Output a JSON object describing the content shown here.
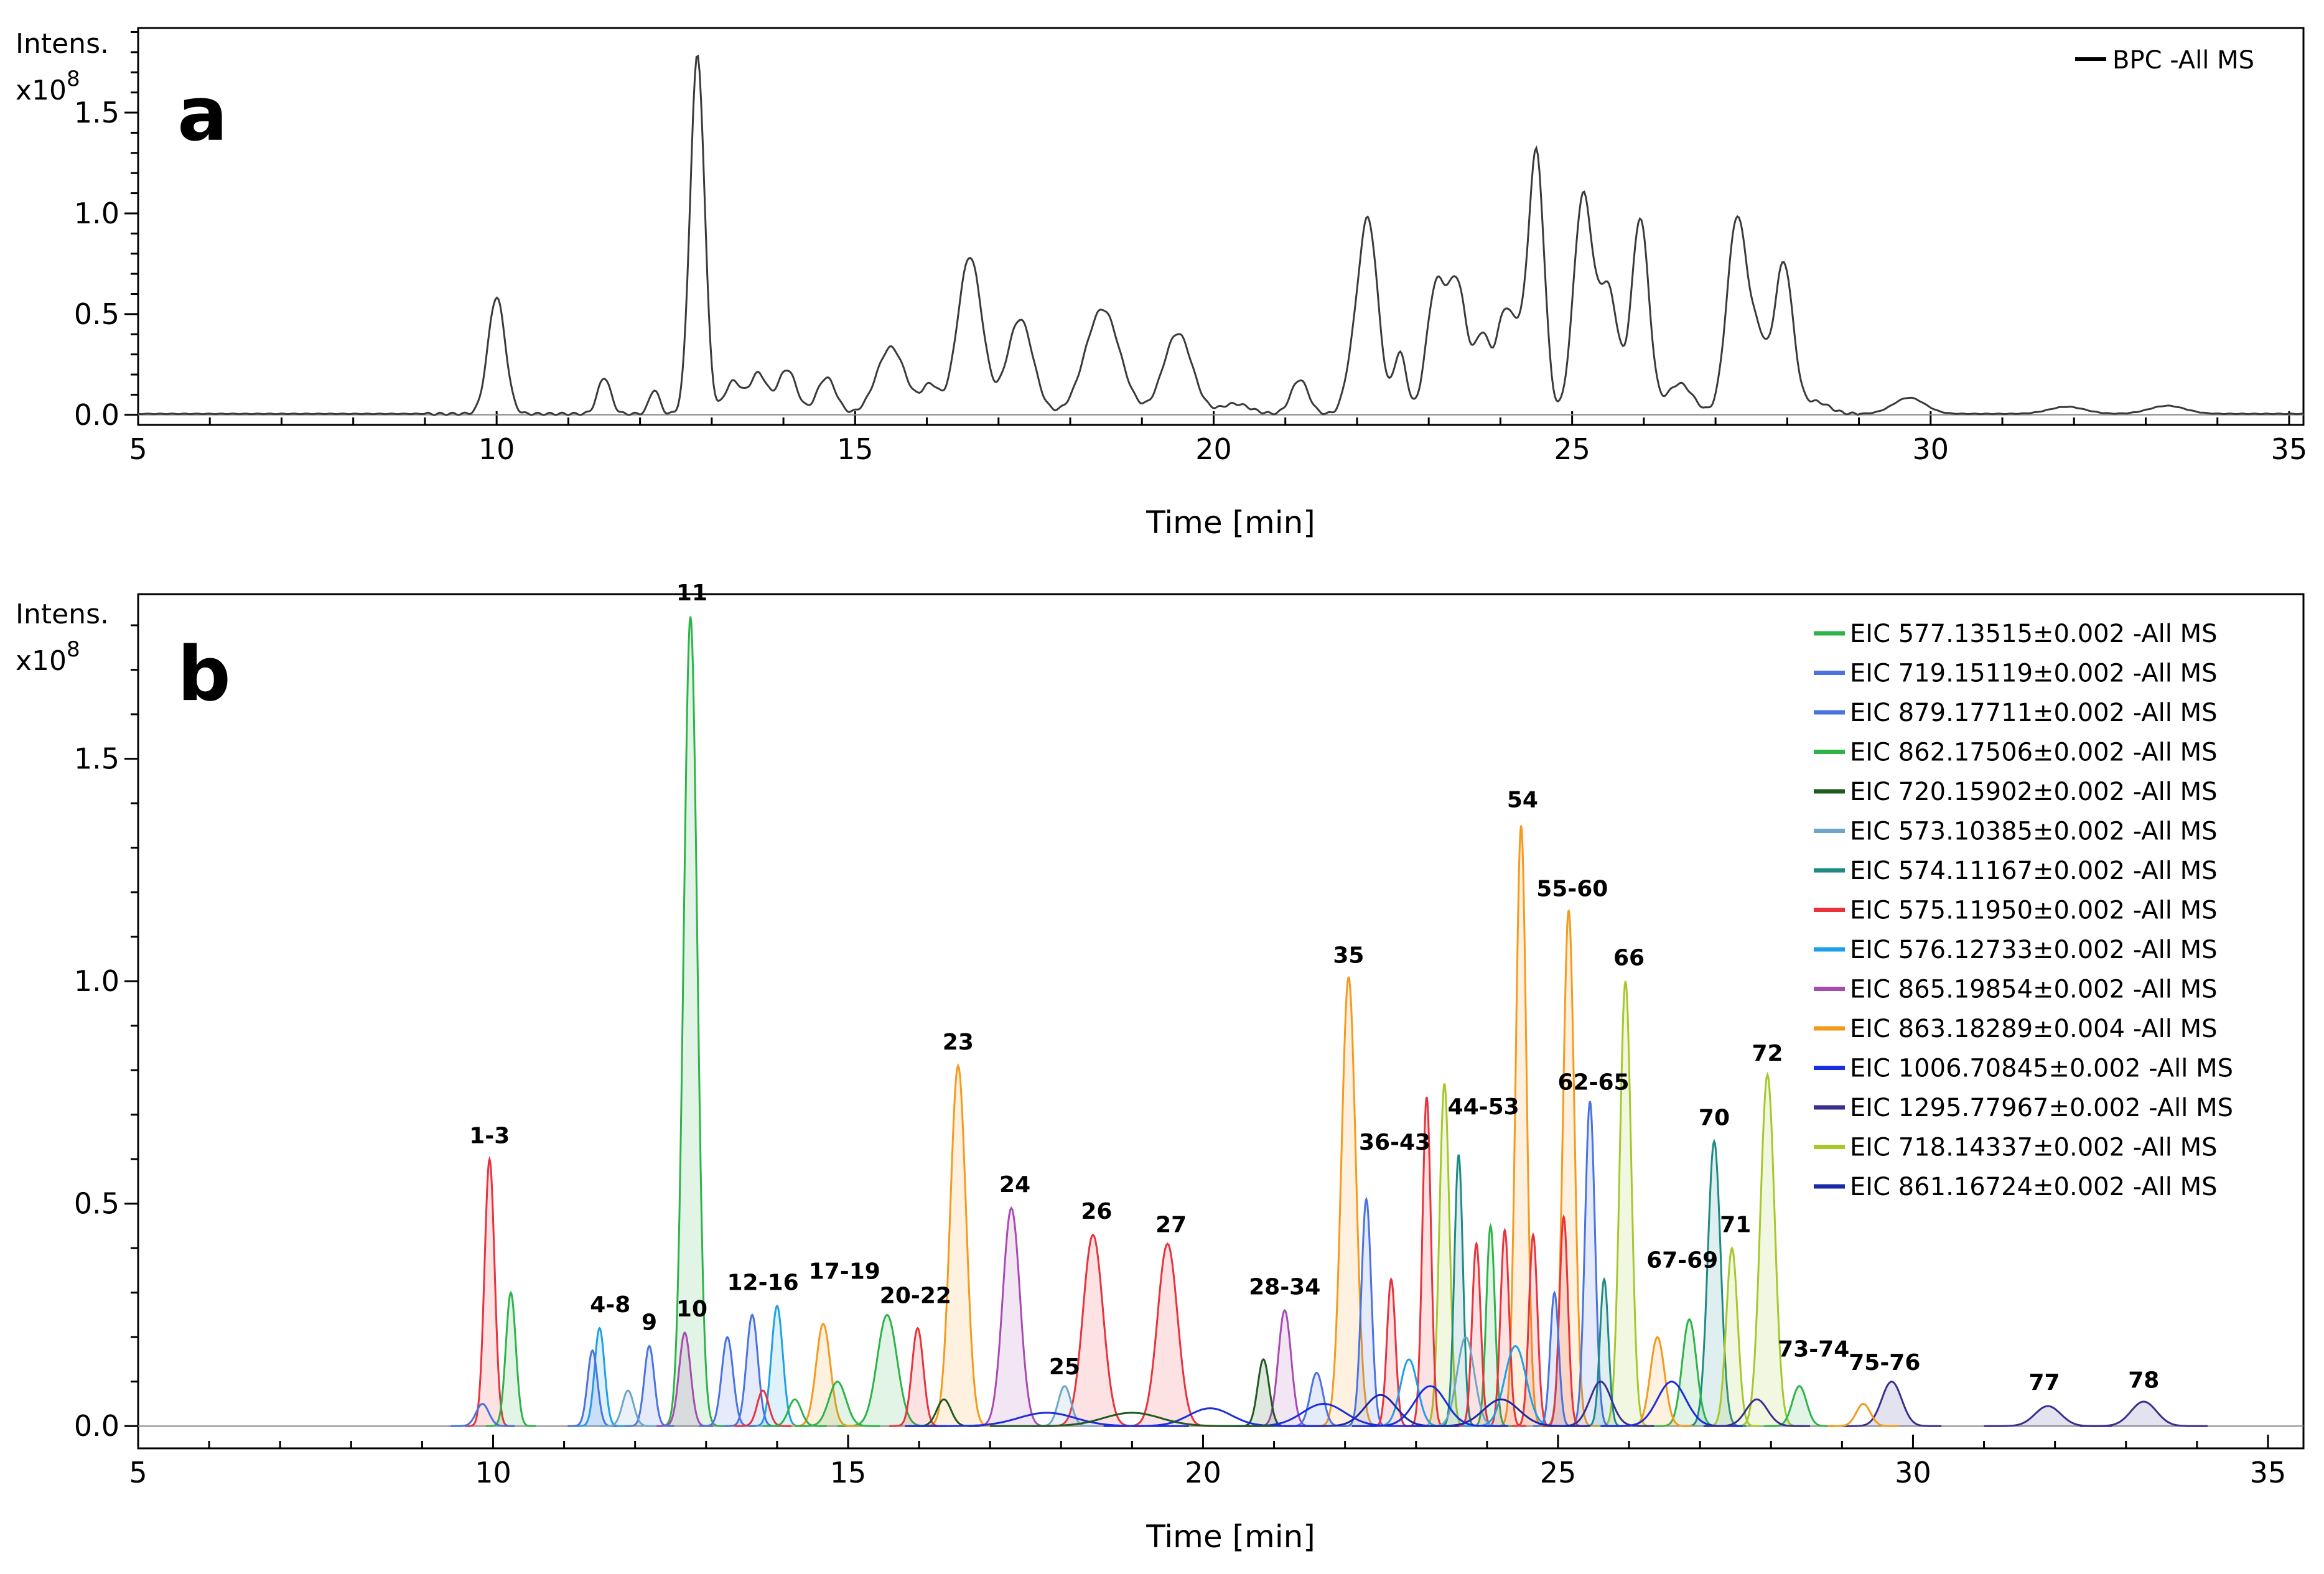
{
  "figure": {
    "panels": [
      "a",
      "b"
    ]
  },
  "chart_data": [
    {
      "type": "line",
      "panel": "a",
      "title": "",
      "xlabel": "Time [min]",
      "ylabel": "Intens.",
      "yexp": "x10",
      "yexp_power": "8",
      "xlim": [
        5,
        35.2
      ],
      "ylim": [
        -0.05,
        1.92
      ],
      "xticks": [
        5,
        10,
        15,
        20,
        25,
        30,
        35
      ],
      "xtick_labels": [
        "5",
        "10",
        "15",
        "20",
        "25",
        "30",
        "35"
      ],
      "yticks": [
        0.0,
        0.5,
        1.0,
        1.5
      ],
      "ytick_labels": [
        "0.0",
        "0.5",
        "1.0",
        "1.5"
      ],
      "legend": [
        {
          "name": "BPC -All MS",
          "color": "#000000"
        }
      ],
      "series": [
        {
          "name": "BPC -All MS",
          "color": "#3a3a3a",
          "baseline": 0.005,
          "peaks": [
            [
              10.0,
              0.58,
              0.12
            ],
            [
              11.5,
              0.18,
              0.09
            ],
            [
              12.2,
              0.12,
              0.07
            ],
            [
              12.8,
              1.78,
              0.1
            ],
            [
              13.3,
              0.16,
              0.12
            ],
            [
              13.65,
              0.2,
              0.12
            ],
            [
              14.05,
              0.22,
              0.13
            ],
            [
              14.6,
              0.18,
              0.13
            ],
            [
              15.5,
              0.33,
              0.2
            ],
            [
              16.05,
              0.14,
              0.12
            ],
            [
              16.6,
              0.78,
              0.17
            ],
            [
              17.3,
              0.47,
              0.18
            ],
            [
              18.45,
              0.52,
              0.24
            ],
            [
              19.5,
              0.4,
              0.2
            ],
            [
              20.3,
              0.05,
              0.2
            ],
            [
              21.2,
              0.17,
              0.12
            ],
            [
              21.9,
              0.12,
              0.1
            ],
            [
              22.15,
              0.97,
              0.14
            ],
            [
              22.6,
              0.3,
              0.09
            ],
            [
              23.1,
              0.62,
              0.13
            ],
            [
              23.4,
              0.63,
              0.13
            ],
            [
              23.75,
              0.38,
              0.11
            ],
            [
              24.05,
              0.47,
              0.11
            ],
            [
              24.5,
              1.3,
              0.11
            ],
            [
              24.25,
              0.3,
              0.1
            ],
            [
              25.15,
              1.07,
              0.13
            ],
            [
              25.5,
              0.62,
              0.14
            ],
            [
              25.95,
              0.97,
              0.12
            ],
            [
              26.5,
              0.15,
              0.18
            ],
            [
              27.3,
              0.97,
              0.14
            ],
            [
              27.6,
              0.33,
              0.12
            ],
            [
              27.95,
              0.75,
              0.13
            ],
            [
              28.4,
              0.06,
              0.18
            ],
            [
              29.7,
              0.08,
              0.22
            ],
            [
              31.9,
              0.035,
              0.25
            ],
            [
              33.3,
              0.04,
              0.25
            ]
          ]
        }
      ]
    },
    {
      "type": "line",
      "panel": "b",
      "title": "",
      "xlabel": "Time [min]",
      "ylabel": "Intens.",
      "yexp": "x10",
      "yexp_power": "8",
      "xlim": [
        5,
        35.5
      ],
      "ylim": [
        -0.05,
        1.87
      ],
      "xticks": [
        5,
        10,
        15,
        20,
        25,
        30,
        35
      ],
      "xtick_labels": [
        "5",
        "10",
        "15",
        "20",
        "25",
        "30",
        "35"
      ],
      "yticks": [
        0.0,
        0.5,
        1.0,
        1.5
      ],
      "ytick_labels": [
        "0.0",
        "0.5",
        "1.0",
        "1.5"
      ],
      "legend": [
        {
          "name": "EIC 577.13515±0.002 -All MS",
          "color": "#2db34a"
        },
        {
          "name": "EIC 719.15119±0.002 -All MS",
          "color": "#4a72e0"
        },
        {
          "name": "EIC 879.17711±0.002 -All MS",
          "color": "#4a72e0"
        },
        {
          "name": "EIC 862.17506±0.002 -All MS",
          "color": "#2db34a"
        },
        {
          "name": "EIC 720.15902±0.002 -All MS",
          "color": "#1f5a1f"
        },
        {
          "name": "EIC 573.10385±0.002 -All MS",
          "color": "#6ea6c8"
        },
        {
          "name": "EIC 574.11167±0.002 -All MS",
          "color": "#1e8a84"
        },
        {
          "name": "EIC 575.11950±0.002 -All MS",
          "color": "#e8323c"
        },
        {
          "name": "EIC 576.12733±0.002 -All MS",
          "color": "#1ea0e6"
        },
        {
          "name": "EIC 865.19854±0.002 -All MS",
          "color": "#a84bb0"
        },
        {
          "name": "EIC 863.18289±0.004 -All MS",
          "color": "#f59a1c"
        },
        {
          "name": "EIC 1006.70845±0.002 -All MS",
          "color": "#1a2ee0"
        },
        {
          "name": "EIC 1295.77967±0.002 -All MS",
          "color": "#3b2f8e"
        },
        {
          "name": "EIC 718.14337±0.002 -All MS",
          "color": "#a6c82a"
        },
        {
          "name": "EIC 861.16724±0.002 -All MS",
          "color": "#1a2aa6"
        }
      ],
      "peaks": [
        {
          "t": 9.95,
          "h": 0.6,
          "w": 0.07,
          "color": "#e8323c",
          "fill": true
        },
        {
          "t": 10.25,
          "h": 0.3,
          "w": 0.07,
          "color": "#2db34a",
          "fill": true
        },
        {
          "t": 9.85,
          "h": 0.05,
          "w": 0.09,
          "color": "#4a72e0",
          "fill": false
        },
        {
          "t": 11.5,
          "h": 0.22,
          "w": 0.07,
          "color": "#1ea0e6",
          "fill": true
        },
        {
          "t": 11.4,
          "h": 0.17,
          "w": 0.07,
          "color": "#4a72e0",
          "fill": true
        },
        {
          "t": 11.9,
          "h": 0.08,
          "w": 0.08,
          "color": "#6ea6c8",
          "fill": true
        },
        {
          "t": 12.2,
          "h": 0.18,
          "w": 0.07,
          "color": "#4a72e0",
          "fill": true
        },
        {
          "t": 12.7,
          "h": 0.21,
          "w": 0.08,
          "color": "#a84bb0",
          "fill": true
        },
        {
          "t": 12.78,
          "h": 1.82,
          "w": 0.095,
          "color": "#2db34a",
          "fill": true
        },
        {
          "t": 13.3,
          "h": 0.2,
          "w": 0.08,
          "color": "#4a72e0",
          "fill": true
        },
        {
          "t": 13.65,
          "h": 0.25,
          "w": 0.08,
          "color": "#4a72e0",
          "fill": true
        },
        {
          "t": 14.0,
          "h": 0.27,
          "w": 0.08,
          "color": "#1ea0e6",
          "fill": true
        },
        {
          "t": 13.8,
          "h": 0.08,
          "w": 0.08,
          "color": "#e8323c",
          "fill": false
        },
        {
          "t": 14.25,
          "h": 0.06,
          "w": 0.09,
          "color": "#2db34a",
          "fill": false
        },
        {
          "t": 14.65,
          "h": 0.23,
          "w": 0.1,
          "color": "#f59a1c",
          "fill": true
        },
        {
          "t": 14.85,
          "h": 0.1,
          "w": 0.12,
          "color": "#2db34a",
          "fill": true
        },
        {
          "t": 15.55,
          "h": 0.25,
          "w": 0.14,
          "color": "#2db34a",
          "fill": true
        },
        {
          "t": 15.98,
          "h": 0.22,
          "w": 0.08,
          "color": "#e8323c",
          "fill": true
        },
        {
          "t": 16.35,
          "h": 0.06,
          "w": 0.1,
          "color": "#1f5a1f",
          "fill": false
        },
        {
          "t": 16.55,
          "h": 0.81,
          "w": 0.11,
          "color": "#f59a1c",
          "fill": true
        },
        {
          "t": 17.3,
          "h": 0.49,
          "w": 0.12,
          "color": "#a84bb0",
          "fill": true
        },
        {
          "t": 18.05,
          "h": 0.09,
          "w": 0.09,
          "color": "#6ea6c8",
          "fill": true
        },
        {
          "t": 18.45,
          "h": 0.43,
          "w": 0.14,
          "color": "#e8323c",
          "fill": true
        },
        {
          "t": 19.5,
          "h": 0.41,
          "w": 0.14,
          "color": "#e8323c",
          "fill": true
        },
        {
          "t": 20.1,
          "h": 0.04,
          "w": 0.3,
          "color": "#1a2ee0",
          "fill": false
        },
        {
          "t": 20.85,
          "h": 0.15,
          "w": 0.08,
          "color": "#1f5a1f",
          "fill": true
        },
        {
          "t": 21.15,
          "h": 0.26,
          "w": 0.09,
          "color": "#a84bb0",
          "fill": true
        },
        {
          "t": 21.6,
          "h": 0.12,
          "w": 0.09,
          "color": "#4a72e0",
          "fill": true
        },
        {
          "t": 22.05,
          "h": 1.01,
          "w": 0.1,
          "color": "#f59a1c",
          "fill": true
        },
        {
          "t": 22.3,
          "h": 0.51,
          "w": 0.07,
          "color": "#4a72e0",
          "fill": true
        },
        {
          "t": 22.65,
          "h": 0.33,
          "w": 0.06,
          "color": "#e8323c",
          "fill": true
        },
        {
          "t": 23.15,
          "h": 0.74,
          "w": 0.06,
          "color": "#e8323c",
          "fill": true
        },
        {
          "t": 23.4,
          "h": 0.77,
          "w": 0.07,
          "color": "#a6c82a",
          "fill": true
        },
        {
          "t": 23.6,
          "h": 0.61,
          "w": 0.06,
          "color": "#1e8a84",
          "fill": true
        },
        {
          "t": 23.85,
          "h": 0.41,
          "w": 0.06,
          "color": "#e8323c",
          "fill": true
        },
        {
          "t": 24.05,
          "h": 0.45,
          "w": 0.06,
          "color": "#2db34a",
          "fill": true
        },
        {
          "t": 24.25,
          "h": 0.44,
          "w": 0.06,
          "color": "#e8323c",
          "fill": true
        },
        {
          "t": 24.48,
          "h": 1.35,
          "w": 0.075,
          "color": "#f59a1c",
          "fill": true
        },
        {
          "t": 24.65,
          "h": 0.43,
          "w": 0.06,
          "color": "#e8323c",
          "fill": true
        },
        {
          "t": 24.95,
          "h": 0.3,
          "w": 0.06,
          "color": "#4a72e0",
          "fill": true
        },
        {
          "t": 25.15,
          "h": 1.16,
          "w": 0.08,
          "color": "#f59a1c",
          "fill": true
        },
        {
          "t": 25.08,
          "h": 0.47,
          "w": 0.06,
          "color": "#e8323c",
          "fill": true
        },
        {
          "t": 25.45,
          "h": 0.73,
          "w": 0.07,
          "color": "#4a72e0",
          "fill": true
        },
        {
          "t": 25.65,
          "h": 0.33,
          "w": 0.06,
          "color": "#1e8a84",
          "fill": true
        },
        {
          "t": 25.95,
          "h": 1.0,
          "w": 0.08,
          "color": "#a6c82a",
          "fill": true
        },
        {
          "t": 26.4,
          "h": 0.2,
          "w": 0.1,
          "color": "#f59a1c",
          "fill": true
        },
        {
          "t": 26.85,
          "h": 0.24,
          "w": 0.1,
          "color": "#2db34a",
          "fill": true
        },
        {
          "t": 27.2,
          "h": 0.64,
          "w": 0.09,
          "color": "#1e8a84",
          "fill": true
        },
        {
          "t": 27.45,
          "h": 0.4,
          "w": 0.08,
          "color": "#a6c82a",
          "fill": true
        },
        {
          "t": 27.95,
          "h": 0.79,
          "w": 0.1,
          "color": "#a6c82a",
          "fill": true
        },
        {
          "t": 28.4,
          "h": 0.09,
          "w": 0.1,
          "color": "#2db34a",
          "fill": true
        },
        {
          "t": 29.3,
          "h": 0.05,
          "w": 0.1,
          "color": "#f59a1c",
          "fill": false
        },
        {
          "t": 29.7,
          "h": 0.1,
          "w": 0.14,
          "color": "#3b2f8e",
          "fill": true
        },
        {
          "t": 31.9,
          "h": 0.045,
          "w": 0.18,
          "color": "#3b2f8e",
          "fill": true
        },
        {
          "t": 33.25,
          "h": 0.055,
          "w": 0.18,
          "color": "#3b2f8e",
          "fill": true
        },
        {
          "t": 21.7,
          "h": 0.05,
          "w": 0.3,
          "color": "#1a2ee0",
          "fill": false
        },
        {
          "t": 22.5,
          "h": 0.07,
          "w": 0.22,
          "color": "#1a2aa6",
          "fill": false
        },
        {
          "t": 23.2,
          "h": 0.09,
          "w": 0.22,
          "color": "#1a2ee0",
          "fill": false
        },
        {
          "t": 24.2,
          "h": 0.06,
          "w": 0.25,
          "color": "#1a2aa6",
          "fill": false
        },
        {
          "t": 25.6,
          "h": 0.1,
          "w": 0.15,
          "color": "#3b2f8e",
          "fill": false
        },
        {
          "t": 26.6,
          "h": 0.1,
          "w": 0.2,
          "color": "#1a2ee0",
          "fill": false
        },
        {
          "t": 27.8,
          "h": 0.06,
          "w": 0.15,
          "color": "#3b2f8e",
          "fill": false
        },
        {
          "t": 22.9,
          "h": 0.15,
          "w": 0.12,
          "color": "#1ea0e6",
          "fill": false
        },
        {
          "t": 23.7,
          "h": 0.2,
          "w": 0.12,
          "color": "#6ea6c8",
          "fill": false
        },
        {
          "t": 24.4,
          "h": 0.18,
          "w": 0.15,
          "color": "#1ea0e6",
          "fill": false
        },
        {
          "t": 17.8,
          "h": 0.03,
          "w": 0.4,
          "color": "#1a2ee0",
          "fill": false
        },
        {
          "t": 19.0,
          "h": 0.03,
          "w": 0.4,
          "color": "#1f5a1f",
          "fill": false
        }
      ],
      "peak_labels": [
        {
          "text": "1-3",
          "t": 9.95,
          "y": 0.625
        },
        {
          "text": "4-8",
          "t": 11.65,
          "y": 0.245
        },
        {
          "text": "9",
          "t": 12.2,
          "y": 0.205
        },
        {
          "text": "10",
          "t": 12.8,
          "y": 0.235
        },
        {
          "text": "11",
          "t": 12.8,
          "y": 1.845
        },
        {
          "text": "12-16",
          "t": 13.8,
          "y": 0.295
        },
        {
          "text": "17-19",
          "t": 14.95,
          "y": 0.32
        },
        {
          "text": "20-22",
          "t": 15.95,
          "y": 0.265
        },
        {
          "text": "23",
          "t": 16.55,
          "y": 0.835
        },
        {
          "text": "24",
          "t": 17.35,
          "y": 0.515
        },
        {
          "text": "25",
          "t": 18.05,
          "y": 0.105
        },
        {
          "text": "26",
          "t": 18.5,
          "y": 0.455
        },
        {
          "text": "27",
          "t": 19.55,
          "y": 0.425
        },
        {
          "text": "28-34",
          "t": 21.15,
          "y": 0.285
        },
        {
          "text": "35",
          "t": 22.05,
          "y": 1.03
        },
        {
          "text": "36-43",
          "t": 22.7,
          "y": 0.61
        },
        {
          "text": "44-53",
          "t": 23.95,
          "y": 0.69
        },
        {
          "text": "54",
          "t": 24.5,
          "y": 1.38
        },
        {
          "text": "55-60",
          "t": 25.2,
          "y": 1.18
        },
        {
          "text": "62-65",
          "t": 25.5,
          "y": 0.745
        },
        {
          "text": "66",
          "t": 26.0,
          "y": 1.025
        },
        {
          "text": "67-69",
          "t": 26.75,
          "y": 0.345
        },
        {
          "text": "70",
          "t": 27.2,
          "y": 0.665
        },
        {
          "text": "71",
          "t": 27.5,
          "y": 0.425
        },
        {
          "text": "72",
          "t": 27.95,
          "y": 0.81
        },
        {
          "text": "73-74",
          "t": 28.6,
          "y": 0.145
        },
        {
          "text": "75-76",
          "t": 29.6,
          "y": 0.115
        },
        {
          "text": "77",
          "t": 31.85,
          "y": 0.07
        },
        {
          "text": "78",
          "t": 33.25,
          "y": 0.075
        }
      ]
    }
  ]
}
